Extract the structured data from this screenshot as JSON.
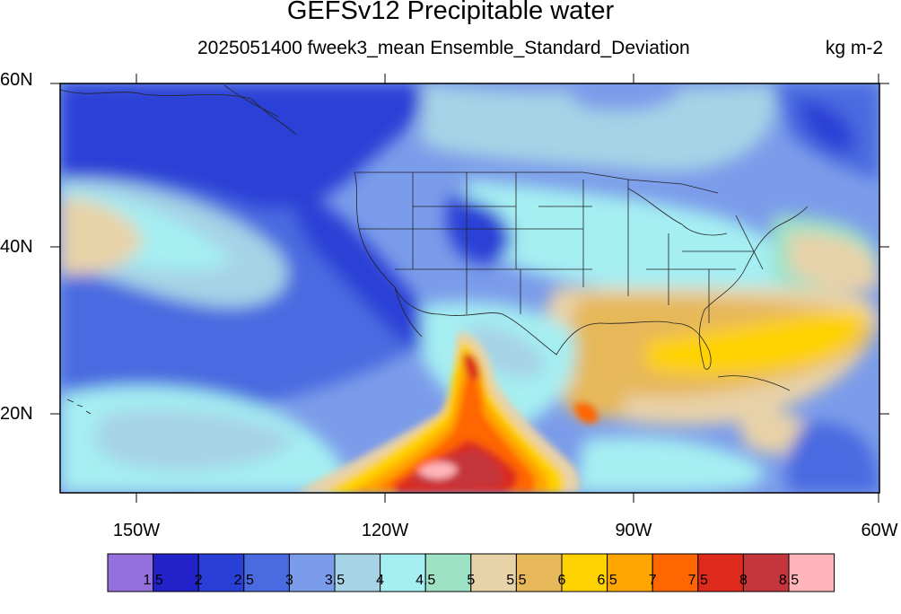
{
  "title": "GEFSv12 Precipitable water",
  "subtitle": "2025051400 fweek3_mean Ensemble_Standard_Deviation",
  "units": "kg m-2",
  "lat_labels": [
    "60N",
    "40N",
    "20N"
  ],
  "lon_labels": [
    "150W",
    "120W",
    "90W",
    "60W"
  ],
  "colorbar": {
    "colors": [
      "#9370db",
      "#2222c8",
      "#2a3fd6",
      "#4a6ae0",
      "#7b9cea",
      "#a6d3e6",
      "#a5eef2",
      "#9ee2c6",
      "#e8d2a8",
      "#e6b85a",
      "#fed200",
      "#ffa500",
      "#ff6500",
      "#dd2a1c",
      "#c4363b",
      "#ffb5ba"
    ],
    "labels": [
      "1.5",
      "2",
      "2.5",
      "3",
      "3.5",
      "4",
      "4.5",
      "5",
      "5.5",
      "6",
      "6.5",
      "7",
      "7.5",
      "8",
      "8.5"
    ]
  },
  "colors": {
    "ocean_blue": "#4a6ae0",
    "deep_blue": "#2a3fd6",
    "light_blue": "#7b9cea",
    "pale_cyan": "#a6d3e6",
    "cyan": "#a5eef2",
    "tan": "#e8d2a8",
    "orange": "#e6b85a",
    "yellow": "#fed200"
  }
}
